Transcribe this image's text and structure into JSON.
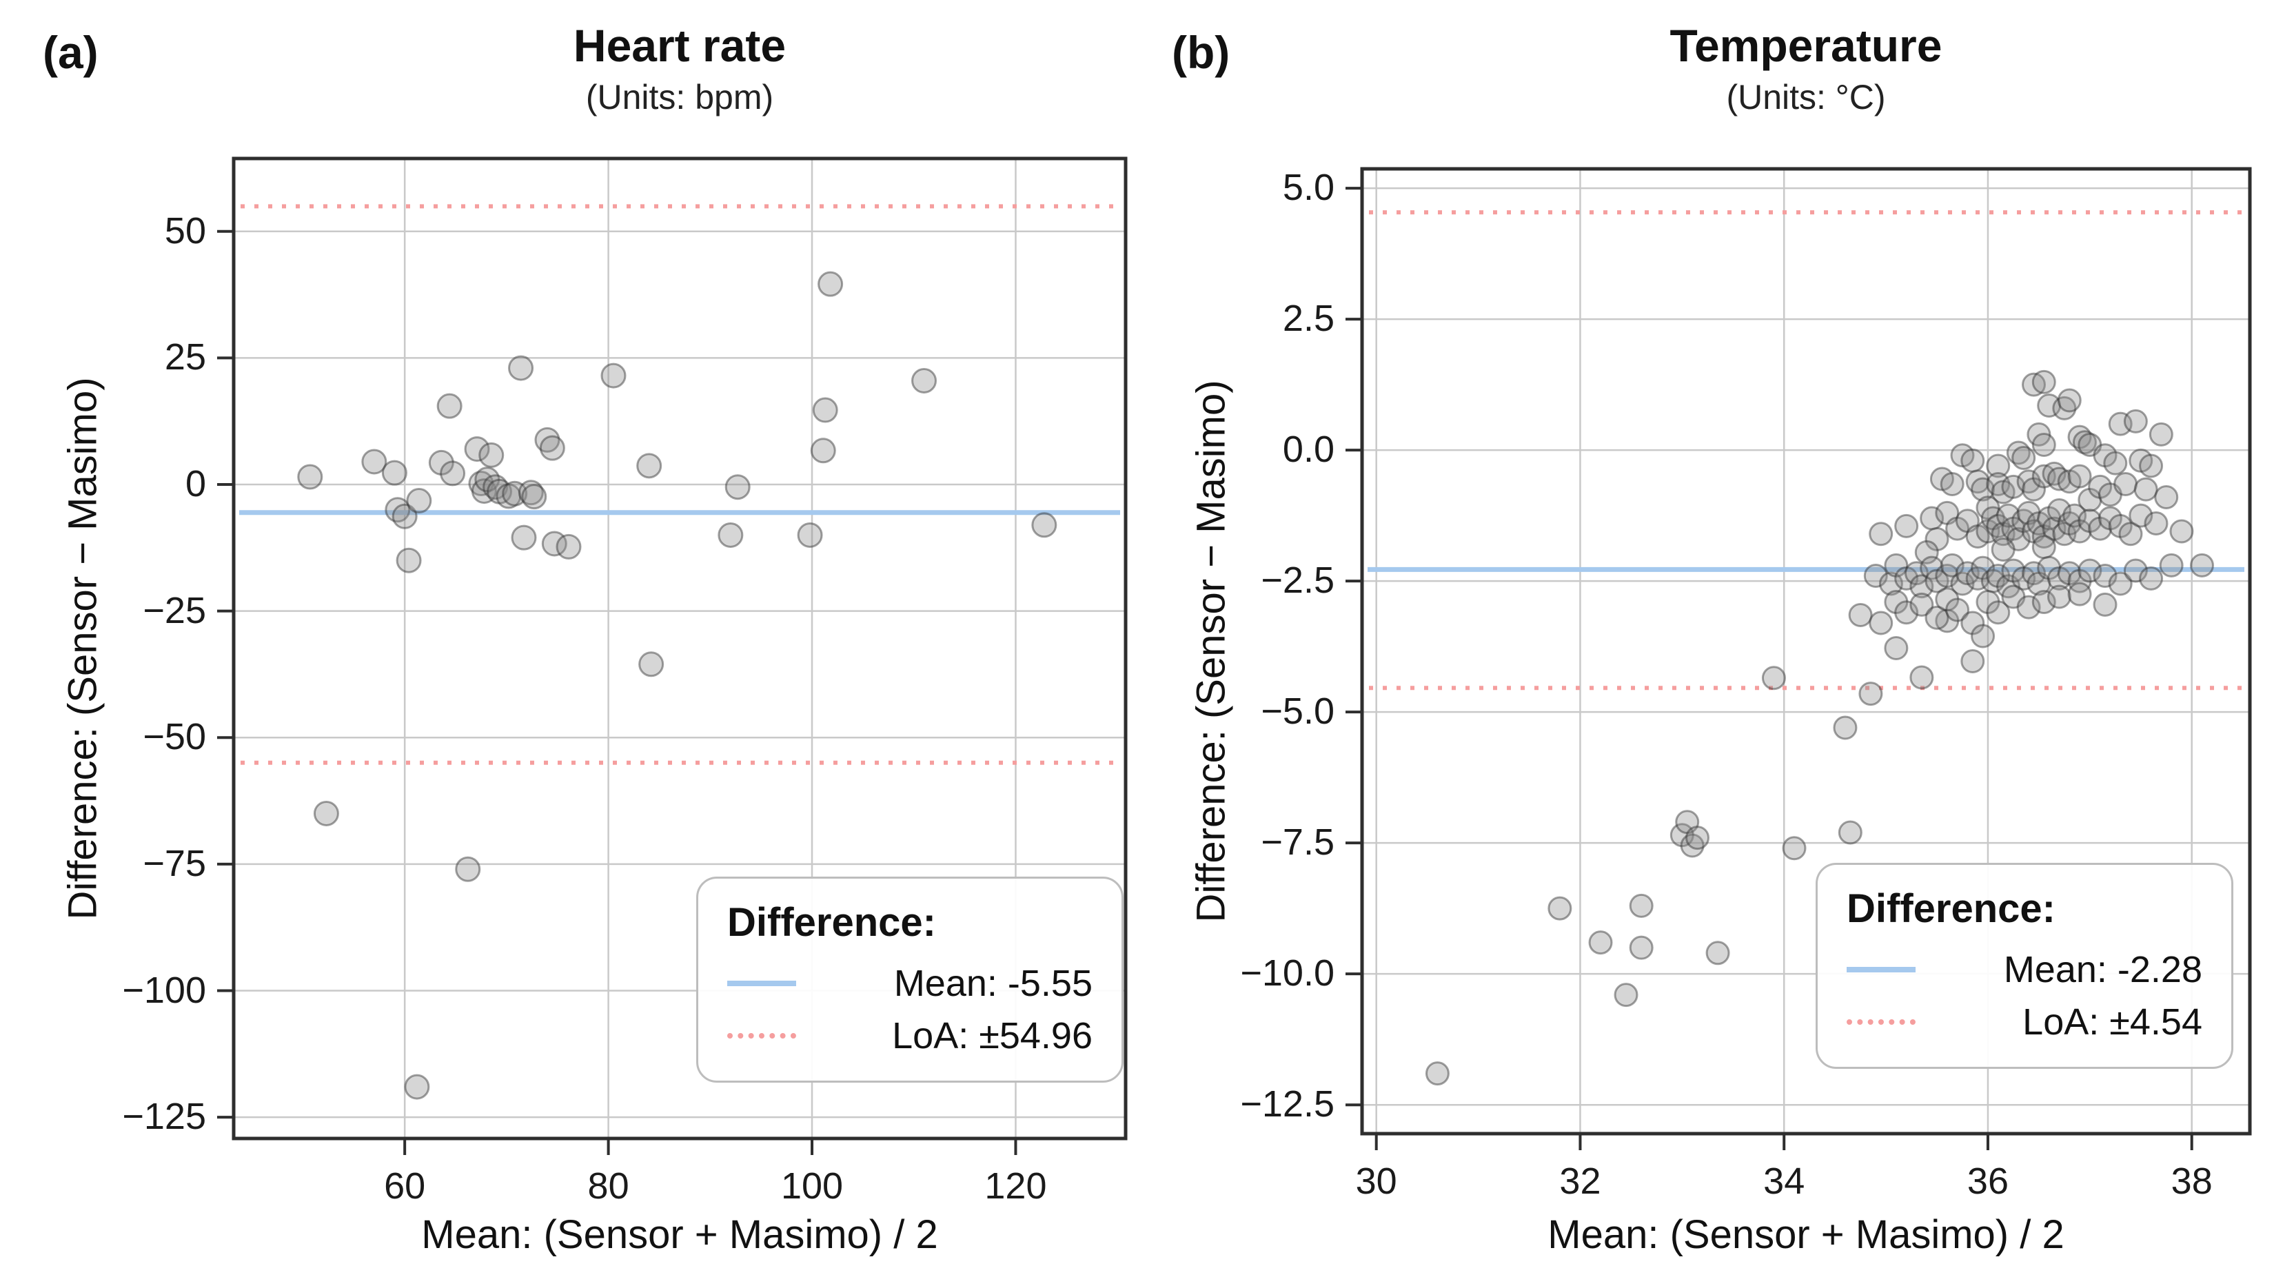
{
  "figure_background": "#ffffff",
  "colors": {
    "mean_line": "#a5c9ee",
    "loa_line": "#f59e9e",
    "marker_fill": "#8a8a8a",
    "marker_edge": "#2f2f2f",
    "grid": "#c9c9c9",
    "spine": "#2e2e2e",
    "text": "#1a1a1a"
  },
  "chart_data": {
    "type": "scatter",
    "figure_kind": "Bland-Altman agreement plots",
    "panels": [
      {
        "label": "(a)",
        "title": "Heart rate",
        "subtitle": "(Units: bpm)",
        "xlabel": "Mean: (Sensor + Masimo) / 2",
        "ylabel": "Difference: (Sensor − Masimo)",
        "mean": -5.55,
        "loa": 54.96,
        "legend": {
          "header": "Difference:",
          "mean_label": "Mean: -5.55",
          "loa_label": "LoA: ±54.96"
        },
        "x_range": [
          43.2,
          130.8
        ],
        "y_range": [
          -129.2,
          64.4
        ],
        "x_ticks": [
          60,
          80,
          100,
          120
        ],
        "x_tick_labels": [
          "60",
          "80",
          "100",
          "120"
        ],
        "y_ticks": [
          50,
          25,
          0,
          -25,
          -50,
          -75,
          -100,
          -125
        ],
        "y_tick_labels": [
          "50",
          "25",
          "0",
          "−25",
          "−50",
          "−75",
          "−100",
          "−125"
        ],
        "marker_radius": 17,
        "points": [
          [
            50.7,
            1.5
          ],
          [
            52.3,
            -65
          ],
          [
            57,
            4.5
          ],
          [
            59,
            2.3
          ],
          [
            59.3,
            -5
          ],
          [
            60,
            -6.3
          ],
          [
            60.4,
            -15
          ],
          [
            61.4,
            -3.2
          ],
          [
            61.2,
            -119
          ],
          [
            63.6,
            4.3
          ],
          [
            64.4,
            15.5
          ],
          [
            64.7,
            2.2
          ],
          [
            66.2,
            -76
          ],
          [
            67.1,
            7
          ],
          [
            67.5,
            0.2
          ],
          [
            67.8,
            -1.3
          ],
          [
            68.1,
            1
          ],
          [
            68.5,
            5.8
          ],
          [
            68.9,
            -0.5
          ],
          [
            69.3,
            -1.4
          ],
          [
            70.2,
            -2.3
          ],
          [
            70.8,
            -1.8
          ],
          [
            71.4,
            23
          ],
          [
            71.7,
            -10.5
          ],
          [
            72.4,
            -1.6
          ],
          [
            72.7,
            -2.4
          ],
          [
            74,
            8.8
          ],
          [
            74.5,
            7.2
          ],
          [
            74.7,
            -11.7
          ],
          [
            76.1,
            -12.3
          ],
          [
            80.5,
            21.5
          ],
          [
            84,
            3.7
          ],
          [
            84.2,
            -35.5
          ],
          [
            92,
            -10
          ],
          [
            92.7,
            -0.5
          ],
          [
            99.8,
            -10
          ],
          [
            101.1,
            6.7
          ],
          [
            101.3,
            14.7
          ],
          [
            101.8,
            39.6
          ],
          [
            111,
            20.5
          ],
          [
            122.8,
            -8
          ]
        ]
      },
      {
        "label": "(b)",
        "title": "Temperature",
        "subtitle": "(Units: °C)",
        "xlabel": "Mean: (Sensor + Masimo) / 2",
        "ylabel": "Difference: (Sensor − Masimo)",
        "mean": -2.28,
        "loa": 4.54,
        "legend": {
          "header": "Difference:",
          "mean_label": "Mean: -2.28",
          "loa_label": "LoA: ±4.54"
        },
        "x_range": [
          29.86,
          38.57
        ],
        "y_range": [
          -13.05,
          5.37
        ],
        "x_ticks": [
          30,
          32,
          34,
          36,
          38
        ],
        "x_tick_labels": [
          "30",
          "32",
          "34",
          "36",
          "38"
        ],
        "y_ticks": [
          5.0,
          2.5,
          0.0,
          -2.5,
          -5.0,
          -7.5,
          -10.0,
          -12.5
        ],
        "y_tick_labels": [
          "5.0",
          "2.5",
          "0.0",
          "−2.5",
          "−5.0",
          "−7.5",
          "−10.0",
          "−12.5"
        ],
        "marker_radius": 16,
        "points": [
          [
            30.6,
            -11.9
          ],
          [
            31.8,
            -8.75
          ],
          [
            32.2,
            -9.4
          ],
          [
            32.45,
            -10.4
          ],
          [
            32.6,
            -8.7
          ],
          [
            32.6,
            -9.5
          ],
          [
            33.0,
            -7.35
          ],
          [
            33.05,
            -7.1
          ],
          [
            33.1,
            -7.55
          ],
          [
            33.15,
            -7.4
          ],
          [
            33.35,
            -9.6
          ],
          [
            33.9,
            -4.35
          ],
          [
            34.1,
            -7.6
          ],
          [
            34.6,
            -5.3
          ],
          [
            34.65,
            -7.3
          ],
          [
            34.85,
            -4.65
          ],
          [
            35.1,
            -3.78
          ],
          [
            35.35,
            -4.34
          ],
          [
            35.85,
            -4.03
          ],
          [
            35.6,
            -3.26
          ],
          [
            36.45,
            1.25
          ],
          [
            36.55,
            1.3
          ],
          [
            36.6,
            0.85
          ],
          [
            36.75,
            0.8
          ],
          [
            36.8,
            0.95
          ],
          [
            37.3,
            0.5
          ],
          [
            37.45,
            0.55
          ],
          [
            37.7,
            0.3
          ],
          [
            35.75,
            -0.1
          ],
          [
            35.85,
            -0.2
          ],
          [
            36.1,
            -0.3
          ],
          [
            36.3,
            -0.05
          ],
          [
            36.35,
            -0.15
          ],
          [
            36.5,
            0.3
          ],
          [
            36.55,
            0.1
          ],
          [
            36.9,
            0.25
          ],
          [
            36.95,
            0.15
          ],
          [
            37.0,
            0.1
          ],
          [
            37.15,
            -0.1
          ],
          [
            37.25,
            -0.25
          ],
          [
            37.5,
            -0.2
          ],
          [
            37.6,
            -0.3
          ],
          [
            35.55,
            -0.55
          ],
          [
            35.65,
            -0.65
          ],
          [
            35.9,
            -0.6
          ],
          [
            35.95,
            -0.75
          ],
          [
            36.1,
            -0.65
          ],
          [
            36.15,
            -0.8
          ],
          [
            36.25,
            -0.7
          ],
          [
            36.4,
            -0.6
          ],
          [
            36.45,
            -0.75
          ],
          [
            36.55,
            -0.5
          ],
          [
            36.65,
            -0.45
          ],
          [
            36.7,
            -0.55
          ],
          [
            36.8,
            -0.6
          ],
          [
            36.9,
            -0.5
          ],
          [
            37.0,
            -0.95
          ],
          [
            37.1,
            -0.7
          ],
          [
            37.2,
            -0.85
          ],
          [
            37.35,
            -0.65
          ],
          [
            37.55,
            -0.75
          ],
          [
            37.75,
            -0.9
          ],
          [
            34.95,
            -1.6
          ],
          [
            35.2,
            -1.45
          ],
          [
            35.45,
            -1.3
          ],
          [
            35.5,
            -1.7
          ],
          [
            35.6,
            -1.2
          ],
          [
            35.7,
            -1.5
          ],
          [
            35.8,
            -1.35
          ],
          [
            35.9,
            -1.65
          ],
          [
            36.0,
            -1.1
          ],
          [
            36.0,
            -1.55
          ],
          [
            36.05,
            -1.3
          ],
          [
            36.1,
            -1.45
          ],
          [
            36.15,
            -1.6
          ],
          [
            36.2,
            -1.25
          ],
          [
            36.25,
            -1.5
          ],
          [
            36.3,
            -1.7
          ],
          [
            36.35,
            -1.35
          ],
          [
            36.4,
            -1.2
          ],
          [
            36.45,
            -1.55
          ],
          [
            36.5,
            -1.4
          ],
          [
            36.55,
            -1.65
          ],
          [
            36.6,
            -1.3
          ],
          [
            36.65,
            -1.5
          ],
          [
            36.7,
            -1.15
          ],
          [
            36.75,
            -1.6
          ],
          [
            36.8,
            -1.4
          ],
          [
            36.85,
            -1.25
          ],
          [
            36.9,
            -1.55
          ],
          [
            37.0,
            -1.35
          ],
          [
            37.1,
            -1.5
          ],
          [
            37.2,
            -1.3
          ],
          [
            37.3,
            -1.45
          ],
          [
            37.4,
            -1.6
          ],
          [
            37.5,
            -1.25
          ],
          [
            37.65,
            -1.4
          ],
          [
            37.9,
            -1.55
          ],
          [
            34.9,
            -2.4
          ],
          [
            35.05,
            -2.55
          ],
          [
            35.1,
            -2.2
          ],
          [
            35.2,
            -2.45
          ],
          [
            35.3,
            -2.35
          ],
          [
            35.35,
            -2.6
          ],
          [
            35.4,
            -1.95
          ],
          [
            35.45,
            -2.25
          ],
          [
            35.5,
            -2.5
          ],
          [
            35.6,
            -2.4
          ],
          [
            35.65,
            -2.2
          ],
          [
            35.75,
            -2.55
          ],
          [
            35.8,
            -2.35
          ],
          [
            35.9,
            -2.45
          ],
          [
            35.95,
            -2.25
          ],
          [
            36.05,
            -2.5
          ],
          [
            36.1,
            -2.4
          ],
          [
            36.15,
            -1.9
          ],
          [
            36.2,
            -2.6
          ],
          [
            36.25,
            -2.3
          ],
          [
            36.35,
            -2.45
          ],
          [
            36.45,
            -2.35
          ],
          [
            36.5,
            -2.55
          ],
          [
            36.55,
            -1.85
          ],
          [
            36.6,
            -2.25
          ],
          [
            36.7,
            -2.45
          ],
          [
            36.8,
            -2.35
          ],
          [
            36.9,
            -2.5
          ],
          [
            37.0,
            -2.3
          ],
          [
            37.15,
            -2.4
          ],
          [
            37.3,
            -2.55
          ],
          [
            37.45,
            -2.3
          ],
          [
            37.6,
            -2.45
          ],
          [
            37.8,
            -2.2
          ],
          [
            34.75,
            -3.15
          ],
          [
            34.95,
            -3.3
          ],
          [
            35.1,
            -2.9
          ],
          [
            35.2,
            -3.1
          ],
          [
            35.35,
            -2.95
          ],
          [
            35.5,
            -3.2
          ],
          [
            35.6,
            -2.85
          ],
          [
            35.7,
            -3.05
          ],
          [
            35.85,
            -3.3
          ],
          [
            36.0,
            -2.9
          ],
          [
            36.1,
            -3.1
          ],
          [
            36.25,
            -2.8
          ],
          [
            36.4,
            -3.0
          ],
          [
            36.55,
            -2.9
          ],
          [
            36.7,
            -2.8
          ],
          [
            36.9,
            -2.75
          ],
          [
            37.15,
            -2.95
          ],
          [
            35.95,
            -3.55
          ],
          [
            38.1,
            -2.2
          ]
        ]
      }
    ]
  }
}
